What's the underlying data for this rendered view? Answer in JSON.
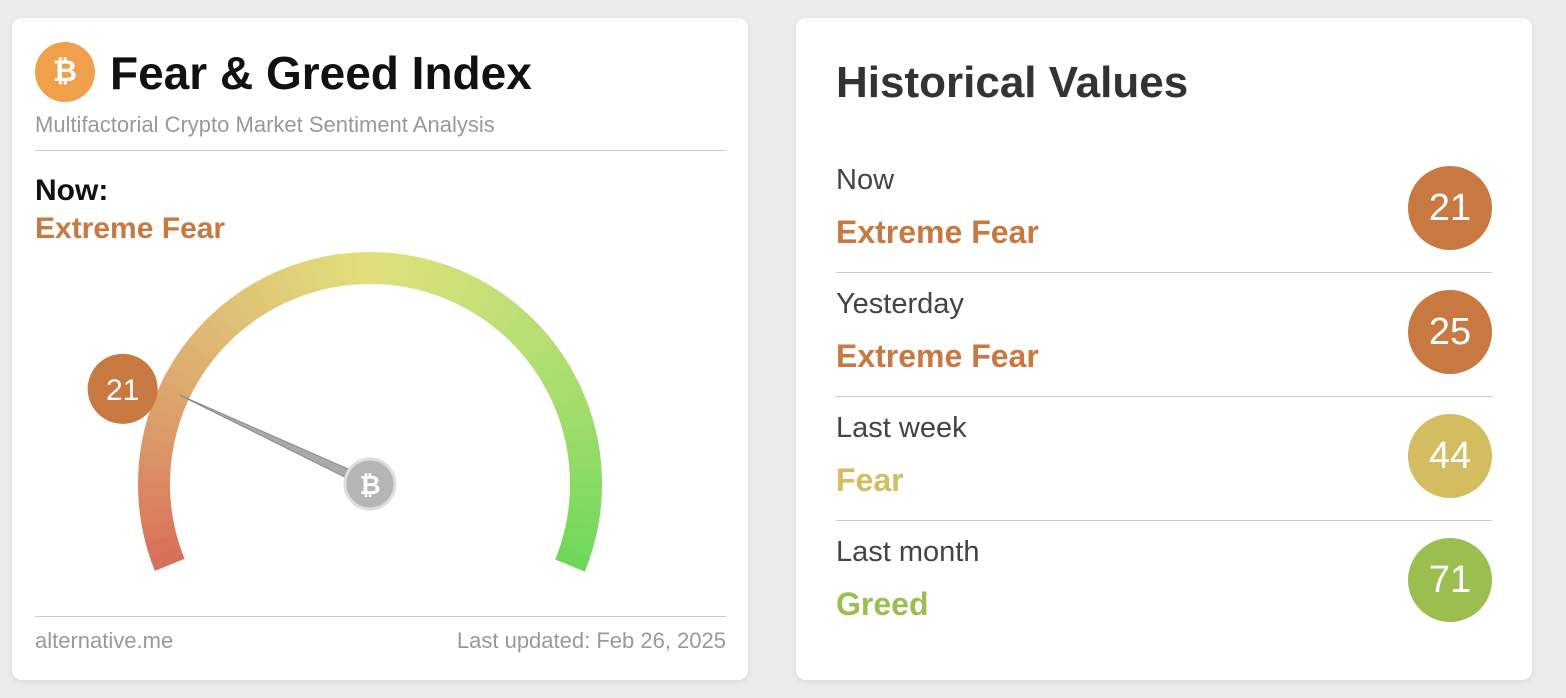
{
  "gauge_card": {
    "title": "Fear & Greed Index",
    "subtitle": "Multifactorial Crypto Market Sentiment Analysis",
    "now_label": "Now:",
    "classification": "Extreme Fear",
    "value": 21,
    "color": "#c87941",
    "lim": [
      0,
      100
    ],
    "source": "alternative.me",
    "last_updated": "Last updated: Feb 26, 2025"
  },
  "historical": {
    "title": "Historical Values",
    "rows": [
      {
        "label": "Now",
        "classification": "Extreme Fear",
        "value": 21,
        "color": "#c87941"
      },
      {
        "label": "Yesterday",
        "classification": "Extreme Fear",
        "value": 25,
        "color": "#c87941"
      },
      {
        "label": "Last week",
        "classification": "Fear",
        "value": 44,
        "color": "#d4bc60"
      },
      {
        "label": "Last month",
        "classification": "Greed",
        "value": 71,
        "color": "#9cbd4f"
      }
    ]
  }
}
